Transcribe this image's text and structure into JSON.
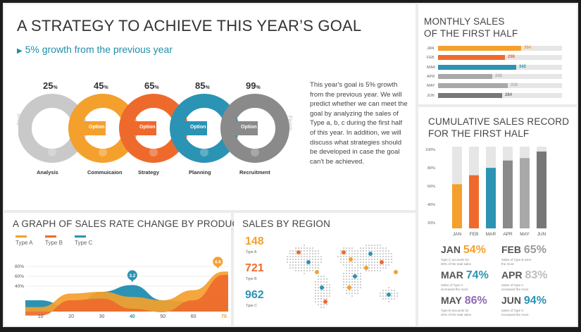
{
  "title": "A STRATEGY TO ACHIEVE THIS YEAR’S GOAL",
  "subtitle": "5% growth from the previous year",
  "description": "This year's goal is 5% growth from the previous year. We will predict whether we can meet the goal by analyzing the sales of Type a, b, c during the first half of this year. In addition, we will discuss what strategies should be developed in case the goal can't be achieved.",
  "process": {
    "start_label": "Start",
    "finish_label": "Finish",
    "stages": [
      {
        "percent": "25",
        "unit": "%",
        "option": "",
        "label": "Analysis",
        "color": "#c9c9c9",
        "icon": "money-bag-icon"
      },
      {
        "percent": "45",
        "unit": "%",
        "option": "Option 01",
        "label": "Commuicaion",
        "color": "#f4a02d",
        "icon": "flask-icon"
      },
      {
        "percent": "65",
        "unit": "%",
        "option": "Option 02",
        "label": "Strategy",
        "color": "#ee6a2c",
        "icon": "clock-icon"
      },
      {
        "percent": "85",
        "unit": "%",
        "option": "Option 03",
        "label": "Planning",
        "color": "#2b93b3",
        "icon": "list-icon"
      },
      {
        "percent": "99",
        "unit": "%",
        "option": "Option 04",
        "label": "Recruitment",
        "color": "#8a8a8a",
        "icon": "lightbulb-icon"
      }
    ]
  },
  "monthly_sales": {
    "title_line1": "MONTHLY SALES",
    "title_line2": "OF THE FIRST HALF",
    "rows": [
      {
        "month": "JAN",
        "value": "364",
        "fill": 0.91,
        "color": "#f4a02d"
      },
      {
        "month": "FEB",
        "value": "298",
        "fill": 0.73,
        "color": "#ee6a2c"
      },
      {
        "month": "MAR",
        "value": "342",
        "fill": 0.85,
        "color": "#2b93b3"
      },
      {
        "month": "APR",
        "value": "242",
        "fill": 0.59,
        "color": "#a9a9a9"
      },
      {
        "month": "MAY",
        "value": "310",
        "fill": 0.76,
        "color": "#a9a9a9"
      },
      {
        "month": "JUN",
        "value": "284",
        "fill": 0.7,
        "color": "#777777"
      }
    ]
  },
  "rate_change": {
    "title": "A GRAPH OF SALES RATE CHANGE BY PRODUCT",
    "legend": [
      {
        "name": "Type A",
        "color": "#f4a02d"
      },
      {
        "name": "Type B",
        "color": "#ee6a2c"
      },
      {
        "name": "Type C",
        "color": "#2b93b3"
      }
    ],
    "y_ticks": [
      "80%",
      "60%",
      "40%"
    ],
    "x_ticks": [
      "10",
      "20",
      "30",
      "40",
      "50",
      "60",
      "70"
    ],
    "callouts": [
      {
        "value": "3.2",
        "color": "#2b93b3"
      },
      {
        "value": "4.6",
        "color": "#f4a02d"
      }
    ]
  },
  "sales_by_region": {
    "title": "SALES BY REGION",
    "items": [
      {
        "value": "148",
        "type": "Type A",
        "color": "#f4a02d"
      },
      {
        "value": "721",
        "type": "Type B",
        "color": "#ee6a2c"
      },
      {
        "value": "962",
        "type": "Type C",
        "color": "#2b93b3"
      }
    ]
  },
  "cumulative": {
    "title_line1": "CUMULATIVE SALES RECORD",
    "title_line2": "FOR THE FIRST HALF",
    "y_ticks": [
      "100%",
      "80%",
      "60%",
      "40%",
      "20%"
    ],
    "months": [
      {
        "m": "JAN",
        "pct": "54%",
        "pct_color": "#f4a02d",
        "note": "Type C accounts for 50% of the total sales"
      },
      {
        "m": "FEB",
        "pct": "65%",
        "pct_color": "#9a9a9a",
        "note": "Sales of Type B were the most."
      },
      {
        "m": "MAR",
        "pct": "74%",
        "pct_color": "#2b93b3",
        "note": "Sales of Type C increased the most."
      },
      {
        "m": "APR",
        "pct": "83%",
        "pct_color": "#bdbdbd",
        "note": "Sales of Type A increased the most."
      },
      {
        "m": "MAY",
        "pct": "86%",
        "pct_color": "#8e6bb0",
        "note": "Type B accounts for 40% of the total sales"
      },
      {
        "m": "JUN",
        "pct": "94%",
        "pct_color": "#2b93b3",
        "note": "Sales of Type C increased the most."
      }
    ]
  },
  "chart_data": [
    {
      "type": "bar",
      "title": "MONTHLY SALES OF THE FIRST HALF",
      "categories": [
        "JAN",
        "FEB",
        "MAR",
        "APR",
        "MAY",
        "JUN"
      ],
      "values": [
        364,
        298,
        342,
        242,
        310,
        284
      ]
    },
    {
      "type": "bar",
      "title": "CUMULATIVE SALES RECORD FOR THE FIRST HALF",
      "categories": [
        "JAN",
        "FEB",
        "MAR",
        "APR",
        "MAY",
        "JUN"
      ],
      "values": [
        54,
        65,
        74,
        83,
        86,
        94
      ],
      "ylim": [
        0,
        100
      ]
    },
    {
      "type": "area",
      "title": "A GRAPH OF SALES RATE CHANGE BY PRODUCT",
      "x": [
        10,
        20,
        30,
        40,
        50,
        60,
        70
      ],
      "series": [
        {
          "name": "Type A",
          "values": [
            32,
            48,
            50,
            44,
            40,
            52,
            74
          ]
        },
        {
          "name": "Type B",
          "values": [
            22,
            40,
            42,
            30,
            26,
            40,
            70
          ]
        },
        {
          "name": "Type C",
          "values": [
            40,
            30,
            50,
            58,
            40,
            38,
            45
          ]
        }
      ]
    }
  ]
}
